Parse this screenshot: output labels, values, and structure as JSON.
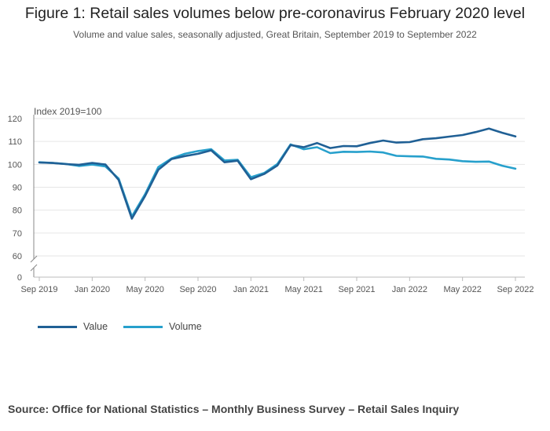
{
  "chart_data": {
    "type": "line",
    "title": "Figure 1: Retail sales volumes below pre-coronavirus February 2020 level",
    "subtitle": "Volume and value sales, seasonally adjusted, Great Britain, September 2019 to September 2022",
    "ylabel": "Index 2019=100",
    "ylim": [
      0,
      120
    ],
    "y_ticks": [
      "120",
      "110",
      "100",
      "90",
      "80",
      "70",
      "60",
      "0"
    ],
    "x_ticks": [
      "Sep 2019",
      "Jan 2020",
      "May 2020",
      "Sep 2020",
      "Jan 2021",
      "May 2021",
      "Sep 2021",
      "Jan 2022",
      "May 2022",
      "Sep 2022"
    ],
    "x": [
      "Sep 2019",
      "Oct 2019",
      "Nov 2019",
      "Dec 2019",
      "Jan 2020",
      "Feb 2020",
      "Mar 2020",
      "Apr 2020",
      "May 2020",
      "Jun 2020",
      "Jul 2020",
      "Aug 2020",
      "Sep 2020",
      "Oct 2020",
      "Nov 2020",
      "Dec 2020",
      "Jan 2021",
      "Feb 2021",
      "Mar 2021",
      "Apr 2021",
      "May 2021",
      "Jun 2021",
      "Jul 2021",
      "Aug 2021",
      "Sep 2021",
      "Oct 2021",
      "Nov 2021",
      "Dec 2021",
      "Jan 2022",
      "Feb 2022",
      "Mar 2022",
      "Apr 2022",
      "May 2022",
      "Jun 2022",
      "Jul 2022",
      "Aug 2022",
      "Sep 2022"
    ],
    "series": [
      {
        "name": "Value",
        "color": "#206095",
        "values": [
          100.8,
          100.6,
          100.1,
          99.8,
          100.6,
          99.9,
          93.2,
          76.3,
          86.2,
          97.6,
          102.3,
          103.6,
          104.6,
          106.1,
          100.9,
          101.6,
          93.5,
          95.8,
          99.5,
          108.4,
          107.5,
          109.3,
          107.1,
          108.0,
          107.9,
          109.3,
          110.4,
          109.5,
          109.7,
          111.0,
          111.4,
          112.1,
          112.8,
          114.1,
          115.6,
          113.8,
          112.2
        ]
      },
      {
        "name": "Volume",
        "color": "#27a0cc",
        "values": [
          100.9,
          100.6,
          100.2,
          99.3,
          99.9,
          99.1,
          93.8,
          77.2,
          87.0,
          98.8,
          102.6,
          104.6,
          105.8,
          106.6,
          101.7,
          102.0,
          94.4,
          96.2,
          100.1,
          108.7,
          106.6,
          107.5,
          104.9,
          105.5,
          105.4,
          105.6,
          105.2,
          103.7,
          103.5,
          103.4,
          102.4,
          102.1,
          101.4,
          101.1,
          101.2,
          99.4,
          98.1
        ]
      }
    ]
  },
  "legend": {
    "value_label": "Value",
    "volume_label": "Volume"
  },
  "source": "Source: Office for National Statistics – Monthly Business Survey – Retail Sales Inquiry"
}
